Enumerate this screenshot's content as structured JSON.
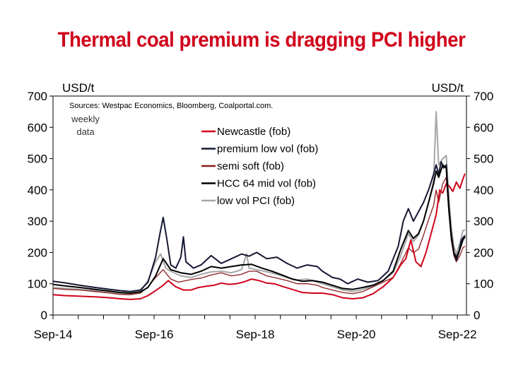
{
  "chart_data": {
    "type": "line",
    "title": "Thermal coal premium is dragging PCI higher",
    "source": "Sources: Westpac Economics, Bloomberg, Coalportal.com.",
    "note": [
      "weekly",
      "data"
    ],
    "ylabel_left": "USD/t",
    "ylabel_right": "USD/t",
    "ylim": [
      0,
      700
    ],
    "yticks": [
      0,
      100,
      200,
      300,
      400,
      500,
      600,
      700
    ],
    "xlim": [
      2014.67,
      2022.85
    ],
    "xticks": [
      {
        "x": 2014.67,
        "label": "Sep-14"
      },
      {
        "x": 2016.67,
        "label": "Sep-16"
      },
      {
        "x": 2018.67,
        "label": "Sep-18"
      },
      {
        "x": 2020.67,
        "label": "Sep-20"
      },
      {
        "x": 2022.67,
        "label": "Sep-22"
      }
    ],
    "legend_position": "top-center",
    "series": [
      {
        "name": "Newcastle (fob)",
        "color": "#d0021b",
        "width": 2,
        "points": [
          [
            2014.67,
            65
          ],
          [
            2014.9,
            62
          ],
          [
            2015.2,
            60
          ],
          [
            2015.5,
            58
          ],
          [
            2015.8,
            55
          ],
          [
            2016.0,
            52
          ],
          [
            2016.2,
            50
          ],
          [
            2016.4,
            52
          ],
          [
            2016.55,
            62
          ],
          [
            2016.7,
            78
          ],
          [
            2016.85,
            95
          ],
          [
            2016.95,
            110
          ],
          [
            2017.1,
            90
          ],
          [
            2017.25,
            80
          ],
          [
            2017.4,
            80
          ],
          [
            2017.55,
            88
          ],
          [
            2017.7,
            92
          ],
          [
            2017.85,
            95
          ],
          [
            2018.0,
            102
          ],
          [
            2018.15,
            98
          ],
          [
            2018.3,
            100
          ],
          [
            2018.45,
            106
          ],
          [
            2018.6,
            115
          ],
          [
            2018.75,
            110
          ],
          [
            2018.9,
            102
          ],
          [
            2019.05,
            100
          ],
          [
            2019.2,
            92
          ],
          [
            2019.4,
            82
          ],
          [
            2019.6,
            72
          ],
          [
            2019.8,
            70
          ],
          [
            2020.0,
            70
          ],
          [
            2020.2,
            65
          ],
          [
            2020.4,
            55
          ],
          [
            2020.6,
            52
          ],
          [
            2020.8,
            55
          ],
          [
            2021.0,
            68
          ],
          [
            2021.2,
            90
          ],
          [
            2021.4,
            120
          ],
          [
            2021.55,
            160
          ],
          [
            2021.65,
            180
          ],
          [
            2021.75,
            240
          ],
          [
            2021.85,
            170
          ],
          [
            2021.95,
            155
          ],
          [
            2022.05,
            200
          ],
          [
            2022.15,
            260
          ],
          [
            2022.25,
            320
          ],
          [
            2022.32,
            400
          ],
          [
            2022.38,
            390
          ],
          [
            2022.45,
            420
          ],
          [
            2022.52,
            410
          ],
          [
            2022.58,
            395
          ],
          [
            2022.65,
            425
          ],
          [
            2022.72,
            405
          ],
          [
            2022.78,
            435
          ],
          [
            2022.82,
            452
          ]
        ]
      },
      {
        "name": "premium low vol (fob)",
        "color": "#151833",
        "width": 2,
        "points": [
          [
            2014.67,
            108
          ],
          [
            2014.9,
            103
          ],
          [
            2015.2,
            95
          ],
          [
            2015.5,
            88
          ],
          [
            2015.8,
            82
          ],
          [
            2016.0,
            78
          ],
          [
            2016.2,
            75
          ],
          [
            2016.4,
            80
          ],
          [
            2016.55,
            105
          ],
          [
            2016.7,
            185
          ],
          [
            2016.78,
            255
          ],
          [
            2016.85,
            312
          ],
          [
            2016.92,
            245
          ],
          [
            2017.0,
            160
          ],
          [
            2017.1,
            150
          ],
          [
            2017.2,
            185
          ],
          [
            2017.25,
            250
          ],
          [
            2017.3,
            170
          ],
          [
            2017.45,
            150
          ],
          [
            2017.6,
            160
          ],
          [
            2017.8,
            190
          ],
          [
            2018.0,
            165
          ],
          [
            2018.2,
            180
          ],
          [
            2018.4,
            195
          ],
          [
            2018.55,
            188
          ],
          [
            2018.7,
            200
          ],
          [
            2018.9,
            180
          ],
          [
            2019.1,
            185
          ],
          [
            2019.3,
            165
          ],
          [
            2019.5,
            150
          ],
          [
            2019.7,
            160
          ],
          [
            2019.9,
            155
          ],
          [
            2020.0,
            140
          ],
          [
            2020.2,
            120
          ],
          [
            2020.35,
            115
          ],
          [
            2020.5,
            100
          ],
          [
            2020.7,
            115
          ],
          [
            2020.9,
            105
          ],
          [
            2021.1,
            110
          ],
          [
            2021.3,
            140
          ],
          [
            2021.5,
            220
          ],
          [
            2021.6,
            300
          ],
          [
            2021.7,
            340
          ],
          [
            2021.8,
            300
          ],
          [
            2021.9,
            330
          ],
          [
            2022.0,
            360
          ],
          [
            2022.1,
            400
          ],
          [
            2022.2,
            450
          ],
          [
            2022.25,
            480
          ],
          [
            2022.3,
            450
          ],
          [
            2022.35,
            490
          ],
          [
            2022.4,
            470
          ],
          [
            2022.45,
            480
          ],
          [
            2022.5,
            350
          ],
          [
            2022.55,
            260
          ],
          [
            2022.6,
            200
          ],
          [
            2022.65,
            175
          ],
          [
            2022.7,
            200
          ],
          [
            2022.75,
            240
          ],
          [
            2022.82,
            255
          ]
        ]
      },
      {
        "name": "semi soft (fob)",
        "color": "#8a1c1c",
        "width": 1.3,
        "points": [
          [
            2014.67,
            85
          ],
          [
            2014.9,
            82
          ],
          [
            2015.2,
            80
          ],
          [
            2015.5,
            75
          ],
          [
            2015.8,
            70
          ],
          [
            2016.0,
            66
          ],
          [
            2016.2,
            65
          ],
          [
            2016.4,
            70
          ],
          [
            2016.55,
            90
          ],
          [
            2016.7,
            120
          ],
          [
            2016.85,
            145
          ],
          [
            2017.0,
            115
          ],
          [
            2017.15,
            105
          ],
          [
            2017.3,
            110
          ],
          [
            2017.45,
            115
          ],
          [
            2017.6,
            118
          ],
          [
            2017.8,
            128
          ],
          [
            2018.0,
            135
          ],
          [
            2018.2,
            125
          ],
          [
            2018.4,
            130
          ],
          [
            2018.55,
            140
          ],
          [
            2018.7,
            140
          ],
          [
            2018.9,
            125
          ],
          [
            2019.1,
            118
          ],
          [
            2019.3,
            110
          ],
          [
            2019.5,
            100
          ],
          [
            2019.7,
            100
          ],
          [
            2019.9,
            95
          ],
          [
            2020.0,
            88
          ],
          [
            2020.2,
            80
          ],
          [
            2020.4,
            72
          ],
          [
            2020.6,
            68
          ],
          [
            2020.8,
            75
          ],
          [
            2021.0,
            90
          ],
          [
            2021.2,
            105
          ],
          [
            2021.4,
            120
          ],
          [
            2021.55,
            165
          ],
          [
            2021.7,
            215
          ],
          [
            2021.8,
            200
          ],
          [
            2021.9,
            210
          ],
          [
            2022.0,
            255
          ],
          [
            2022.1,
            305
          ],
          [
            2022.2,
            350
          ],
          [
            2022.25,
            400
          ],
          [
            2022.3,
            360
          ],
          [
            2022.38,
            420
          ],
          [
            2022.45,
            440
          ],
          [
            2022.5,
            330
          ],
          [
            2022.55,
            240
          ],
          [
            2022.6,
            190
          ],
          [
            2022.65,
            170
          ],
          [
            2022.72,
            190
          ],
          [
            2022.78,
            215
          ],
          [
            2022.82,
            220
          ]
        ]
      },
      {
        "name": "HCC 64 mid vol (fob)",
        "color": "#000000",
        "width": 2,
        "points": [
          [
            2014.67,
            98
          ],
          [
            2014.9,
            93
          ],
          [
            2015.2,
            88
          ],
          [
            2015.5,
            82
          ],
          [
            2015.8,
            76
          ],
          [
            2016.0,
            72
          ],
          [
            2016.2,
            70
          ],
          [
            2016.4,
            74
          ],
          [
            2016.55,
            88
          ],
          [
            2016.7,
            125
          ],
          [
            2016.85,
            180
          ],
          [
            2017.0,
            145
          ],
          [
            2017.2,
            135
          ],
          [
            2017.4,
            130
          ],
          [
            2017.6,
            140
          ],
          [
            2017.8,
            155
          ],
          [
            2018.0,
            150
          ],
          [
            2018.2,
            155
          ],
          [
            2018.4,
            160
          ],
          [
            2018.6,
            162
          ],
          [
            2018.8,
            150
          ],
          [
            2019.0,
            140
          ],
          [
            2019.2,
            128
          ],
          [
            2019.4,
            115
          ],
          [
            2019.6,
            108
          ],
          [
            2019.8,
            110
          ],
          [
            2020.0,
            105
          ],
          [
            2020.2,
            95
          ],
          [
            2020.4,
            85
          ],
          [
            2020.6,
            82
          ],
          [
            2020.8,
            88
          ],
          [
            2021.0,
            95
          ],
          [
            2021.2,
            110
          ],
          [
            2021.4,
            140
          ],
          [
            2021.55,
            210
          ],
          [
            2021.7,
            270
          ],
          [
            2021.8,
            245
          ],
          [
            2021.9,
            260
          ],
          [
            2022.0,
            300
          ],
          [
            2022.1,
            360
          ],
          [
            2022.2,
            420
          ],
          [
            2022.25,
            460
          ],
          [
            2022.3,
            440
          ],
          [
            2022.38,
            480
          ],
          [
            2022.45,
            470
          ],
          [
            2022.5,
            340
          ],
          [
            2022.55,
            250
          ],
          [
            2022.6,
            200
          ],
          [
            2022.65,
            185
          ],
          [
            2022.72,
            210
          ],
          [
            2022.78,
            240
          ],
          [
            2022.82,
            250
          ]
        ]
      },
      {
        "name": "low vol PCI (fob)",
        "color": "#a6a6a6",
        "width": 2,
        "points": [
          [
            2014.67,
            88
          ],
          [
            2014.9,
            85
          ],
          [
            2015.2,
            82
          ],
          [
            2015.5,
            78
          ],
          [
            2015.8,
            72
          ],
          [
            2016.0,
            70
          ],
          [
            2016.2,
            68
          ],
          [
            2016.4,
            75
          ],
          [
            2016.55,
            110
          ],
          [
            2016.7,
            170
          ],
          [
            2016.8,
            195
          ],
          [
            2016.9,
            150
          ],
          [
            2017.0,
            140
          ],
          [
            2017.2,
            125
          ],
          [
            2017.4,
            120
          ],
          [
            2017.6,
            130
          ],
          [
            2017.8,
            138
          ],
          [
            2018.0,
            140
          ],
          [
            2018.2,
            135
          ],
          [
            2018.4,
            145
          ],
          [
            2018.5,
            195
          ],
          [
            2018.55,
            150
          ],
          [
            2018.7,
            145
          ],
          [
            2018.9,
            138
          ],
          [
            2019.1,
            130
          ],
          [
            2019.3,
            120
          ],
          [
            2019.5,
            112
          ],
          [
            2019.7,
            115
          ],
          [
            2019.9,
            105
          ],
          [
            2020.0,
            100
          ],
          [
            2020.2,
            90
          ],
          [
            2020.4,
            80
          ],
          [
            2020.6,
            75
          ],
          [
            2020.8,
            82
          ],
          [
            2021.0,
            92
          ],
          [
            2021.2,
            110
          ],
          [
            2021.4,
            135
          ],
          [
            2021.55,
            190
          ],
          [
            2021.7,
            260
          ],
          [
            2021.8,
            235
          ],
          [
            2021.9,
            255
          ],
          [
            2022.0,
            300
          ],
          [
            2022.1,
            360
          ],
          [
            2022.2,
            430
          ],
          [
            2022.25,
            650
          ],
          [
            2022.3,
            480
          ],
          [
            2022.38,
            500
          ],
          [
            2022.45,
            510
          ],
          [
            2022.5,
            380
          ],
          [
            2022.55,
            280
          ],
          [
            2022.6,
            220
          ],
          [
            2022.65,
            195
          ],
          [
            2022.72,
            230
          ],
          [
            2022.78,
            270
          ],
          [
            2022.82,
            272
          ]
        ]
      }
    ]
  }
}
